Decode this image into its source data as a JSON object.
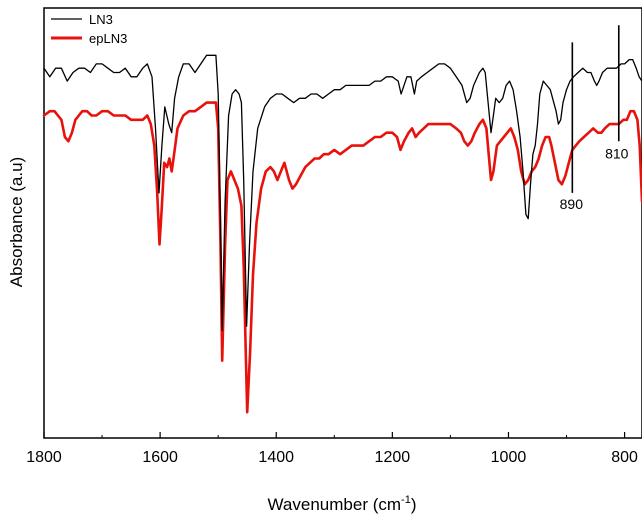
{
  "chart_data": {
    "type": "line",
    "xlabel": "Wavenumber (cm",
    "xlabel_sup": "-1",
    "xlabel_end": ")",
    "ylabel": "Absorbance (a.u)",
    "xlim": [
      1800,
      770
    ],
    "x_reversed": true,
    "ylim": [
      0,
      1
    ],
    "y_ticks_shown": false,
    "grid": false,
    "legend_position": "top-left",
    "x_ticks": [
      1800,
      1600,
      1400,
      1200,
      1000,
      800
    ],
    "series": [
      {
        "name": "LN3",
        "color": "#000000",
        "points": [
          [
            1800,
            0.86
          ],
          [
            1790,
            0.84
          ],
          [
            1780,
            0.86
          ],
          [
            1770,
            0.86
          ],
          [
            1760,
            0.83
          ],
          [
            1750,
            0.85
          ],
          [
            1740,
            0.86
          ],
          [
            1730,
            0.86
          ],
          [
            1720,
            0.85
          ],
          [
            1710,
            0.87
          ],
          [
            1700,
            0.87
          ],
          [
            1690,
            0.86
          ],
          [
            1680,
            0.85
          ],
          [
            1670,
            0.85
          ],
          [
            1660,
            0.86
          ],
          [
            1650,
            0.84
          ],
          [
            1640,
            0.84
          ],
          [
            1630,
            0.86
          ],
          [
            1622,
            0.87
          ],
          [
            1614,
            0.84
          ],
          [
            1608,
            0.72
          ],
          [
            1602,
            0.57
          ],
          [
            1597,
            0.68
          ],
          [
            1592,
            0.77
          ],
          [
            1585,
            0.73
          ],
          [
            1580,
            0.71
          ],
          [
            1575,
            0.79
          ],
          [
            1568,
            0.84
          ],
          [
            1560,
            0.87
          ],
          [
            1550,
            0.87
          ],
          [
            1540,
            0.85
          ],
          [
            1530,
            0.87
          ],
          [
            1520,
            0.89
          ],
          [
            1510,
            0.89
          ],
          [
            1504,
            0.89
          ],
          [
            1500,
            0.8
          ],
          [
            1496,
            0.5
          ],
          [
            1493,
            0.25
          ],
          [
            1488,
            0.55
          ],
          [
            1482,
            0.75
          ],
          [
            1476,
            0.8
          ],
          [
            1470,
            0.81
          ],
          [
            1464,
            0.8
          ],
          [
            1460,
            0.78
          ],
          [
            1456,
            0.6
          ],
          [
            1451,
            0.26
          ],
          [
            1446,
            0.45
          ],
          [
            1440,
            0.62
          ],
          [
            1432,
            0.72
          ],
          [
            1420,
            0.77
          ],
          [
            1410,
            0.79
          ],
          [
            1400,
            0.8
          ],
          [
            1390,
            0.8
          ],
          [
            1380,
            0.79
          ],
          [
            1370,
            0.78
          ],
          [
            1360,
            0.79
          ],
          [
            1350,
            0.79
          ],
          [
            1340,
            0.8
          ],
          [
            1330,
            0.8
          ],
          [
            1320,
            0.79
          ],
          [
            1310,
            0.8
          ],
          [
            1300,
            0.81
          ],
          [
            1290,
            0.81
          ],
          [
            1280,
            0.82
          ],
          [
            1270,
            0.82
          ],
          [
            1260,
            0.82
          ],
          [
            1250,
            0.82
          ],
          [
            1240,
            0.82
          ],
          [
            1230,
            0.83
          ],
          [
            1220,
            0.83
          ],
          [
            1210,
            0.84
          ],
          [
            1200,
            0.84
          ],
          [
            1190,
            0.83
          ],
          [
            1185,
            0.8
          ],
          [
            1180,
            0.82
          ],
          [
            1175,
            0.84
          ],
          [
            1168,
            0.84
          ],
          [
            1162,
            0.8
          ],
          [
            1158,
            0.83
          ],
          [
            1150,
            0.84
          ],
          [
            1140,
            0.85
          ],
          [
            1130,
            0.86
          ],
          [
            1120,
            0.87
          ],
          [
            1110,
            0.87
          ],
          [
            1100,
            0.86
          ],
          [
            1090,
            0.84
          ],
          [
            1080,
            0.82
          ],
          [
            1072,
            0.78
          ],
          [
            1066,
            0.79
          ],
          [
            1060,
            0.82
          ],
          [
            1050,
            0.85
          ],
          [
            1044,
            0.86
          ],
          [
            1040,
            0.85
          ],
          [
            1035,
            0.78
          ],
          [
            1030,
            0.71
          ],
          [
            1026,
            0.75
          ],
          [
            1022,
            0.79
          ],
          [
            1016,
            0.78
          ],
          [
            1010,
            0.79
          ],
          [
            1004,
            0.82
          ],
          [
            998,
            0.83
          ],
          [
            992,
            0.81
          ],
          [
            986,
            0.76
          ],
          [
            980,
            0.7
          ],
          [
            975,
            0.62
          ],
          [
            970,
            0.52
          ],
          [
            966,
            0.51
          ],
          [
            962,
            0.59
          ],
          [
            958,
            0.66
          ],
          [
            954,
            0.68
          ],
          [
            950,
            0.73
          ],
          [
            946,
            0.8
          ],
          [
            940,
            0.83
          ],
          [
            934,
            0.82
          ],
          [
            928,
            0.81
          ],
          [
            924,
            0.79
          ],
          [
            918,
            0.76
          ],
          [
            914,
            0.73
          ],
          [
            910,
            0.74
          ],
          [
            906,
            0.78
          ],
          [
            900,
            0.81
          ],
          [
            894,
            0.83
          ],
          [
            888,
            0.84
          ],
          [
            880,
            0.85
          ],
          [
            872,
            0.86
          ],
          [
            864,
            0.85
          ],
          [
            858,
            0.85
          ],
          [
            852,
            0.83
          ],
          [
            848,
            0.82
          ],
          [
            844,
            0.83
          ],
          [
            838,
            0.85
          ],
          [
            830,
            0.86
          ],
          [
            822,
            0.86
          ],
          [
            814,
            0.86
          ],
          [
            806,
            0.87
          ],
          [
            800,
            0.87
          ],
          [
            792,
            0.88
          ],
          [
            786,
            0.88
          ],
          [
            780,
            0.86
          ],
          [
            775,
            0.84
          ],
          [
            770,
            0.83
          ]
        ]
      },
      {
        "name": "epLN3",
        "color": "#e8120c",
        "points": [
          [
            1800,
            0.75
          ],
          [
            1790,
            0.76
          ],
          [
            1782,
            0.76
          ],
          [
            1776,
            0.75
          ],
          [
            1770,
            0.74
          ],
          [
            1764,
            0.7
          ],
          [
            1758,
            0.69
          ],
          [
            1752,
            0.71
          ],
          [
            1746,
            0.74
          ],
          [
            1740,
            0.75
          ],
          [
            1734,
            0.76
          ],
          [
            1726,
            0.76
          ],
          [
            1718,
            0.75
          ],
          [
            1710,
            0.75
          ],
          [
            1700,
            0.76
          ],
          [
            1690,
            0.76
          ],
          [
            1680,
            0.75
          ],
          [
            1670,
            0.75
          ],
          [
            1660,
            0.75
          ],
          [
            1650,
            0.74
          ],
          [
            1640,
            0.74
          ],
          [
            1630,
            0.74
          ],
          [
            1622,
            0.75
          ],
          [
            1616,
            0.73
          ],
          [
            1610,
            0.68
          ],
          [
            1605,
            0.57
          ],
          [
            1601,
            0.45
          ],
          [
            1597,
            0.54
          ],
          [
            1593,
            0.64
          ],
          [
            1588,
            0.63
          ],
          [
            1584,
            0.65
          ],
          [
            1580,
            0.62
          ],
          [
            1576,
            0.66
          ],
          [
            1570,
            0.72
          ],
          [
            1560,
            0.75
          ],
          [
            1550,
            0.76
          ],
          [
            1540,
            0.76
          ],
          [
            1530,
            0.77
          ],
          [
            1520,
            0.78
          ],
          [
            1510,
            0.78
          ],
          [
            1504,
            0.78
          ],
          [
            1500,
            0.72
          ],
          [
            1496,
            0.45
          ],
          [
            1493,
            0.18
          ],
          [
            1488,
            0.45
          ],
          [
            1484,
            0.6
          ],
          [
            1478,
            0.62
          ],
          [
            1472,
            0.6
          ],
          [
            1466,
            0.58
          ],
          [
            1460,
            0.54
          ],
          [
            1456,
            0.4
          ],
          [
            1450,
            0.06
          ],
          [
            1445,
            0.2
          ],
          [
            1440,
            0.38
          ],
          [
            1434,
            0.5
          ],
          [
            1426,
            0.58
          ],
          [
            1418,
            0.62
          ],
          [
            1410,
            0.63
          ],
          [
            1404,
            0.62
          ],
          [
            1398,
            0.6
          ],
          [
            1392,
            0.62
          ],
          [
            1386,
            0.64
          ],
          [
            1378,
            0.6
          ],
          [
            1372,
            0.58
          ],
          [
            1366,
            0.59
          ],
          [
            1358,
            0.61
          ],
          [
            1350,
            0.63
          ],
          [
            1342,
            0.64
          ],
          [
            1334,
            0.65
          ],
          [
            1326,
            0.65
          ],
          [
            1318,
            0.66
          ],
          [
            1310,
            0.66
          ],
          [
            1300,
            0.67
          ],
          [
            1290,
            0.66
          ],
          [
            1280,
            0.67
          ],
          [
            1270,
            0.68
          ],
          [
            1260,
            0.68
          ],
          [
            1250,
            0.68
          ],
          [
            1240,
            0.69
          ],
          [
            1230,
            0.7
          ],
          [
            1220,
            0.7
          ],
          [
            1210,
            0.71
          ],
          [
            1200,
            0.71
          ],
          [
            1192,
            0.7
          ],
          [
            1186,
            0.67
          ],
          [
            1180,
            0.69
          ],
          [
            1172,
            0.71
          ],
          [
            1166,
            0.72
          ],
          [
            1160,
            0.7
          ],
          [
            1154,
            0.71
          ],
          [
            1146,
            0.72
          ],
          [
            1138,
            0.73
          ],
          [
            1130,
            0.73
          ],
          [
            1120,
            0.73
          ],
          [
            1110,
            0.73
          ],
          [
            1100,
            0.73
          ],
          [
            1090,
            0.72
          ],
          [
            1082,
            0.71
          ],
          [
            1076,
            0.69
          ],
          [
            1070,
            0.68
          ],
          [
            1064,
            0.69
          ],
          [
            1058,
            0.71
          ],
          [
            1050,
            0.73
          ],
          [
            1044,
            0.74
          ],
          [
            1038,
            0.72
          ],
          [
            1034,
            0.66
          ],
          [
            1030,
            0.6
          ],
          [
            1026,
            0.62
          ],
          [
            1020,
            0.68
          ],
          [
            1014,
            0.69
          ],
          [
            1008,
            0.7
          ],
          [
            1002,
            0.71
          ],
          [
            996,
            0.72
          ],
          [
            990,
            0.7
          ],
          [
            984,
            0.67
          ],
          [
            978,
            0.62
          ],
          [
            972,
            0.59
          ],
          [
            966,
            0.6
          ],
          [
            960,
            0.62
          ],
          [
            954,
            0.63
          ],
          [
            948,
            0.65
          ],
          [
            942,
            0.68
          ],
          [
            936,
            0.7
          ],
          [
            930,
            0.7
          ],
          [
            926,
            0.68
          ],
          [
            920,
            0.64
          ],
          [
            914,
            0.6
          ],
          [
            908,
            0.59
          ],
          [
            902,
            0.61
          ],
          [
            896,
            0.64
          ],
          [
            890,
            0.67
          ],
          [
            884,
            0.68
          ],
          [
            878,
            0.69
          ],
          [
            870,
            0.7
          ],
          [
            862,
            0.71
          ],
          [
            854,
            0.72
          ],
          [
            846,
            0.71
          ],
          [
            840,
            0.71
          ],
          [
            834,
            0.72
          ],
          [
            826,
            0.73
          ],
          [
            818,
            0.73
          ],
          [
            810,
            0.73
          ],
          [
            802,
            0.74
          ],
          [
            796,
            0.74
          ],
          [
            790,
            0.76
          ],
          [
            784,
            0.76
          ],
          [
            778,
            0.74
          ],
          [
            774,
            0.68
          ],
          [
            770,
            0.55
          ]
        ]
      }
    ],
    "annotations": [
      {
        "label": "890",
        "x": 890,
        "y_top": 0.92,
        "y_bottom": 0.57
      },
      {
        "label": "810",
        "x": 810,
        "y_top": 0.96,
        "y_bottom": 0.69
      }
    ]
  }
}
